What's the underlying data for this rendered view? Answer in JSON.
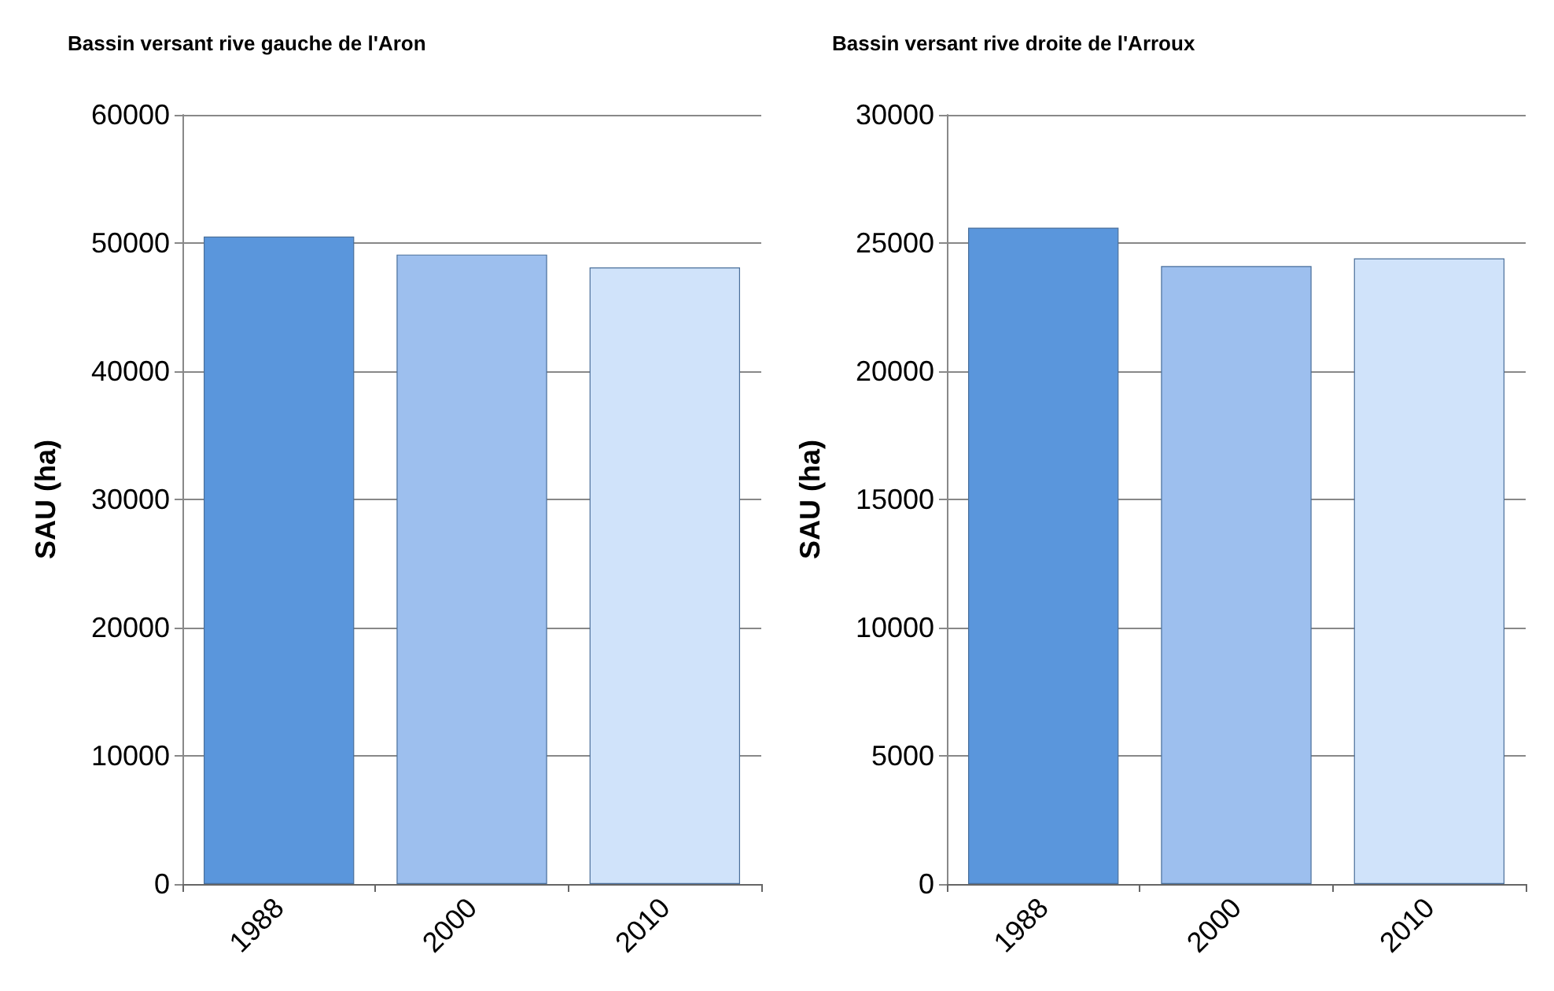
{
  "chart_data": [
    {
      "type": "bar",
      "title": "Bassin versant rive gauche de l'Aron",
      "ylabel": "SAU (ha)",
      "categories": [
        "1988",
        "2000",
        "2010"
      ],
      "values": [
        50500,
        49100,
        48100
      ],
      "colors": [
        "#5a96dc",
        "#9dbfee",
        "#d0e3fa"
      ],
      "ylim": [
        0,
        60000
      ],
      "yticks": [
        0,
        10000,
        20000,
        30000,
        40000,
        50000,
        60000
      ],
      "grid": "y"
    },
    {
      "type": "bar",
      "title": "Bassin versant rive droite de l'Arroux",
      "ylabel": "SAU (ha)",
      "categories": [
        "1988",
        "2000",
        "2010"
      ],
      "values": [
        25600,
        24100,
        24400
      ],
      "colors": [
        "#5a96dc",
        "#9dbfee",
        "#d0e3fa"
      ],
      "ylim": [
        0,
        30000
      ],
      "yticks": [
        0,
        5000,
        10000,
        15000,
        20000,
        25000,
        30000
      ],
      "grid": "y"
    }
  ]
}
